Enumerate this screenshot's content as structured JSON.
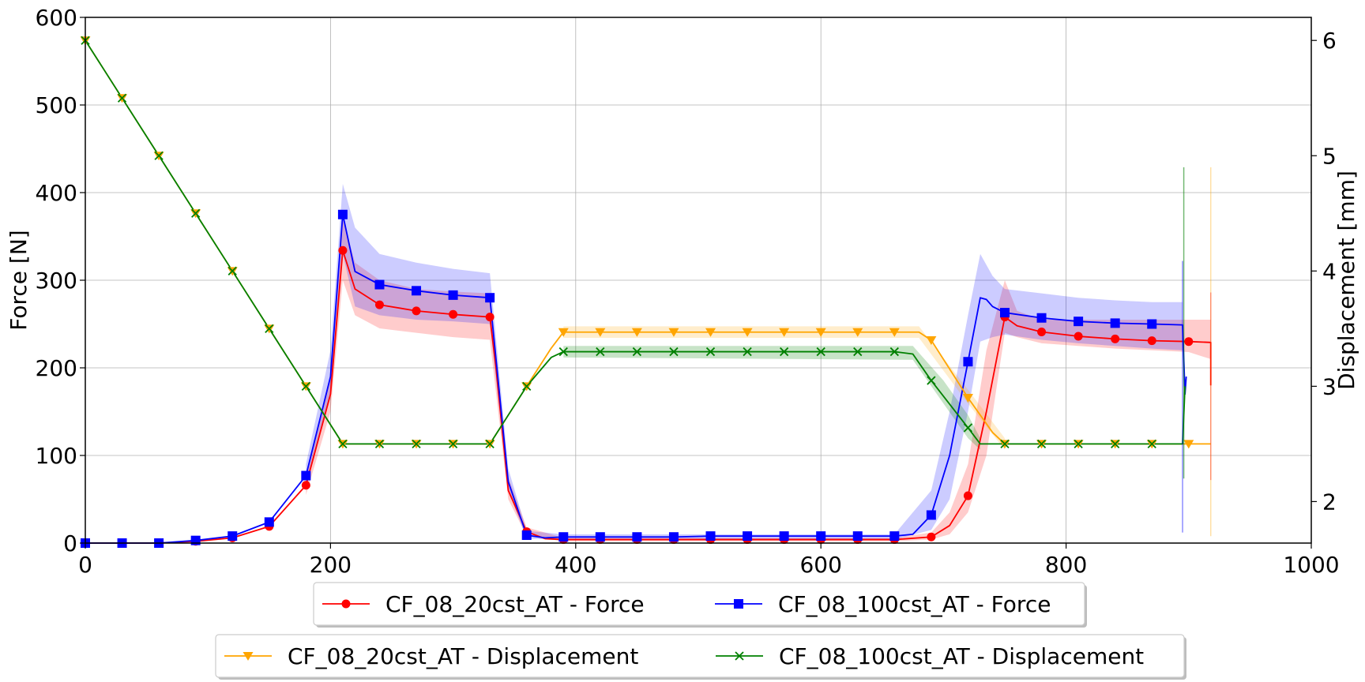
{
  "chart_data": {
    "type": "line",
    "xlim": [
      0,
      1000
    ],
    "ylim_left": [
      0,
      600
    ],
    "ylim_right": [
      1.64,
      6.2
    ],
    "x_ticks": [
      0,
      200,
      400,
      600,
      800,
      1000
    ],
    "y_ticks_left": [
      0,
      100,
      200,
      300,
      400,
      500,
      600
    ],
    "y_ticks_right": [
      2,
      3,
      4,
      5,
      6
    ],
    "ylabel_left": "Force [N]",
    "ylabel_right": "Displacement [mm]",
    "grid": true,
    "legend_position": "bottom",
    "legend_rows": [
      [
        "CF_08_20cst_AT - Force",
        "CF_08_100cst_AT - Force"
      ],
      [
        "CF_08_20cst_AT - Displacement",
        "CF_08_100cst_AT - Displacement"
      ]
    ],
    "series": [
      {
        "name": "CF_08_20cst_AT - Force",
        "axis": "left",
        "color": "#ff0000",
        "marker": "circle",
        "points": [
          [
            0,
            0
          ],
          [
            30,
            0
          ],
          [
            60,
            0
          ],
          [
            90,
            2
          ],
          [
            120,
            6
          ],
          [
            150,
            19
          ],
          [
            180,
            66
          ],
          [
            200,
            170
          ],
          [
            210,
            334
          ],
          [
            220,
            290
          ],
          [
            240,
            272
          ],
          [
            270,
            265
          ],
          [
            300,
            261
          ],
          [
            330,
            258
          ],
          [
            335,
            200
          ],
          [
            345,
            60
          ],
          [
            360,
            13
          ],
          [
            375,
            5
          ],
          [
            390,
            4
          ],
          [
            420,
            4
          ],
          [
            450,
            4
          ],
          [
            480,
            4
          ],
          [
            510,
            4
          ],
          [
            540,
            4
          ],
          [
            570,
            4
          ],
          [
            600,
            4
          ],
          [
            630,
            4
          ],
          [
            660,
            4
          ],
          [
            690,
            7
          ],
          [
            705,
            20
          ],
          [
            720,
            54
          ],
          [
            735,
            150
          ],
          [
            750,
            258
          ],
          [
            760,
            248
          ],
          [
            780,
            241
          ],
          [
            810,
            236
          ],
          [
            840,
            233
          ],
          [
            870,
            231
          ],
          [
            900,
            230
          ],
          [
            918,
            229
          ],
          [
            918,
            180
          ]
        ],
        "band": [
          [
            180,
            55,
            75
          ],
          [
            200,
            150,
            190
          ],
          [
            210,
            300,
            370
          ],
          [
            220,
            260,
            320
          ],
          [
            240,
            245,
            300
          ],
          [
            270,
            240,
            290
          ],
          [
            300,
            235,
            287
          ],
          [
            330,
            232,
            285
          ],
          [
            345,
            50,
            75
          ],
          [
            360,
            8,
            18
          ],
          [
            390,
            2,
            6
          ],
          [
            660,
            2,
            6
          ],
          [
            690,
            4,
            12
          ],
          [
            705,
            10,
            35
          ],
          [
            720,
            35,
            90
          ],
          [
            735,
            100,
            220
          ],
          [
            750,
            240,
            300
          ],
          [
            760,
            235,
            265
          ],
          [
            780,
            228,
            255
          ],
          [
            810,
            225,
            255
          ],
          [
            840,
            222,
            255
          ],
          [
            870,
            220,
            255
          ],
          [
            900,
            218,
            255
          ],
          [
            918,
            210,
            255
          ]
        ]
      },
      {
        "name": "CF_08_100cst_AT - Force",
        "axis": "left",
        "color": "#0000ff",
        "marker": "square",
        "points": [
          [
            0,
            0
          ],
          [
            30,
            0
          ],
          [
            60,
            0
          ],
          [
            90,
            3
          ],
          [
            120,
            8
          ],
          [
            150,
            24
          ],
          [
            180,
            77
          ],
          [
            200,
            190
          ],
          [
            210,
            375
          ],
          [
            220,
            310
          ],
          [
            240,
            295
          ],
          [
            270,
            288
          ],
          [
            300,
            283
          ],
          [
            330,
            280
          ],
          [
            335,
            210
          ],
          [
            345,
            70
          ],
          [
            360,
            9
          ],
          [
            375,
            6
          ],
          [
            390,
            7
          ],
          [
            420,
            7
          ],
          [
            450,
            7
          ],
          [
            480,
            7
          ],
          [
            510,
            8
          ],
          [
            540,
            8
          ],
          [
            570,
            8
          ],
          [
            600,
            8
          ],
          [
            630,
            8
          ],
          [
            660,
            8
          ],
          [
            675,
            10
          ],
          [
            690,
            32
          ],
          [
            705,
            100
          ],
          [
            720,
            207
          ],
          [
            730,
            280
          ],
          [
            735,
            278
          ],
          [
            740,
            270
          ],
          [
            750,
            263
          ],
          [
            780,
            257
          ],
          [
            810,
            253
          ],
          [
            840,
            251
          ],
          [
            870,
            250
          ],
          [
            895,
            249
          ],
          [
            897,
            170
          ],
          [
            898,
            190
          ]
        ],
        "band": [
          [
            180,
            65,
            90
          ],
          [
            200,
            170,
            220
          ],
          [
            210,
            330,
            410
          ],
          [
            220,
            270,
            360
          ],
          [
            240,
            260,
            330
          ],
          [
            270,
            255,
            320
          ],
          [
            300,
            253,
            313
          ],
          [
            330,
            250,
            308
          ],
          [
            345,
            60,
            85
          ],
          [
            360,
            5,
            14
          ],
          [
            390,
            4,
            10
          ],
          [
            660,
            4,
            10
          ],
          [
            690,
            15,
            60
          ],
          [
            705,
            50,
            150
          ],
          [
            720,
            150,
            260
          ],
          [
            730,
            230,
            330
          ],
          [
            740,
            235,
            305
          ],
          [
            750,
            238,
            290
          ],
          [
            780,
            232,
            285
          ],
          [
            810,
            228,
            280
          ],
          [
            840,
            225,
            277
          ],
          [
            870,
            222,
            275
          ],
          [
            895,
            220,
            275
          ]
        ]
      },
      {
        "name": "CF_08_20cst_AT - Displacement",
        "axis": "right",
        "color": "#ffa500",
        "marker": "triangle-down",
        "points": [
          [
            0,
            6.0
          ],
          [
            30,
            5.5
          ],
          [
            60,
            5.0
          ],
          [
            90,
            4.5
          ],
          [
            120,
            4.0
          ],
          [
            150,
            3.5
          ],
          [
            180,
            3.0
          ],
          [
            210,
            2.5
          ],
          [
            240,
            2.5
          ],
          [
            270,
            2.5
          ],
          [
            300,
            2.5
          ],
          [
            330,
            2.5
          ],
          [
            360,
            3.0
          ],
          [
            380,
            3.33
          ],
          [
            390,
            3.47
          ],
          [
            420,
            3.47
          ],
          [
            450,
            3.47
          ],
          [
            480,
            3.47
          ],
          [
            510,
            3.47
          ],
          [
            540,
            3.47
          ],
          [
            570,
            3.47
          ],
          [
            600,
            3.47
          ],
          [
            630,
            3.47
          ],
          [
            660,
            3.47
          ],
          [
            680,
            3.47
          ],
          [
            690,
            3.4
          ],
          [
            720,
            2.9
          ],
          [
            740,
            2.6
          ],
          [
            750,
            2.5
          ],
          [
            780,
            2.5
          ],
          [
            810,
            2.5
          ],
          [
            840,
            2.5
          ],
          [
            870,
            2.5
          ],
          [
            900,
            2.5
          ],
          [
            918,
            2.5
          ]
        ],
        "band": [
          [
            390,
            3.42,
            3.52
          ],
          [
            680,
            3.42,
            3.52
          ],
          [
            720,
            2.85,
            2.97
          ],
          [
            750,
            2.45,
            2.55
          ]
        ]
      },
      {
        "name": "CF_08_100cst_AT - Displacement",
        "axis": "right",
        "color": "#008000",
        "marker": "x",
        "points": [
          [
            0,
            6.0
          ],
          [
            30,
            5.5
          ],
          [
            60,
            5.0
          ],
          [
            90,
            4.5
          ],
          [
            120,
            4.0
          ],
          [
            150,
            3.5
          ],
          [
            180,
            3.0
          ],
          [
            210,
            2.5
          ],
          [
            240,
            2.5
          ],
          [
            270,
            2.5
          ],
          [
            300,
            2.5
          ],
          [
            330,
            2.5
          ],
          [
            360,
            3.0
          ],
          [
            380,
            3.25
          ],
          [
            390,
            3.3
          ],
          [
            420,
            3.3
          ],
          [
            450,
            3.3
          ],
          [
            480,
            3.3
          ],
          [
            510,
            3.3
          ],
          [
            540,
            3.3
          ],
          [
            570,
            3.3
          ],
          [
            600,
            3.3
          ],
          [
            630,
            3.3
          ],
          [
            660,
            3.3
          ],
          [
            675,
            3.28
          ],
          [
            690,
            3.05
          ],
          [
            720,
            2.64
          ],
          [
            730,
            2.5
          ],
          [
            750,
            2.5
          ],
          [
            780,
            2.5
          ],
          [
            810,
            2.5
          ],
          [
            840,
            2.5
          ],
          [
            870,
            2.5
          ],
          [
            895,
            2.5
          ],
          [
            897,
            3.0
          ]
        ],
        "band": [
          [
            390,
            3.25,
            3.35
          ],
          [
            675,
            3.23,
            3.35
          ],
          [
            700,
            2.85,
            3.05
          ],
          [
            720,
            2.55,
            2.75
          ],
          [
            730,
            2.45,
            2.55
          ]
        ]
      }
    ]
  }
}
